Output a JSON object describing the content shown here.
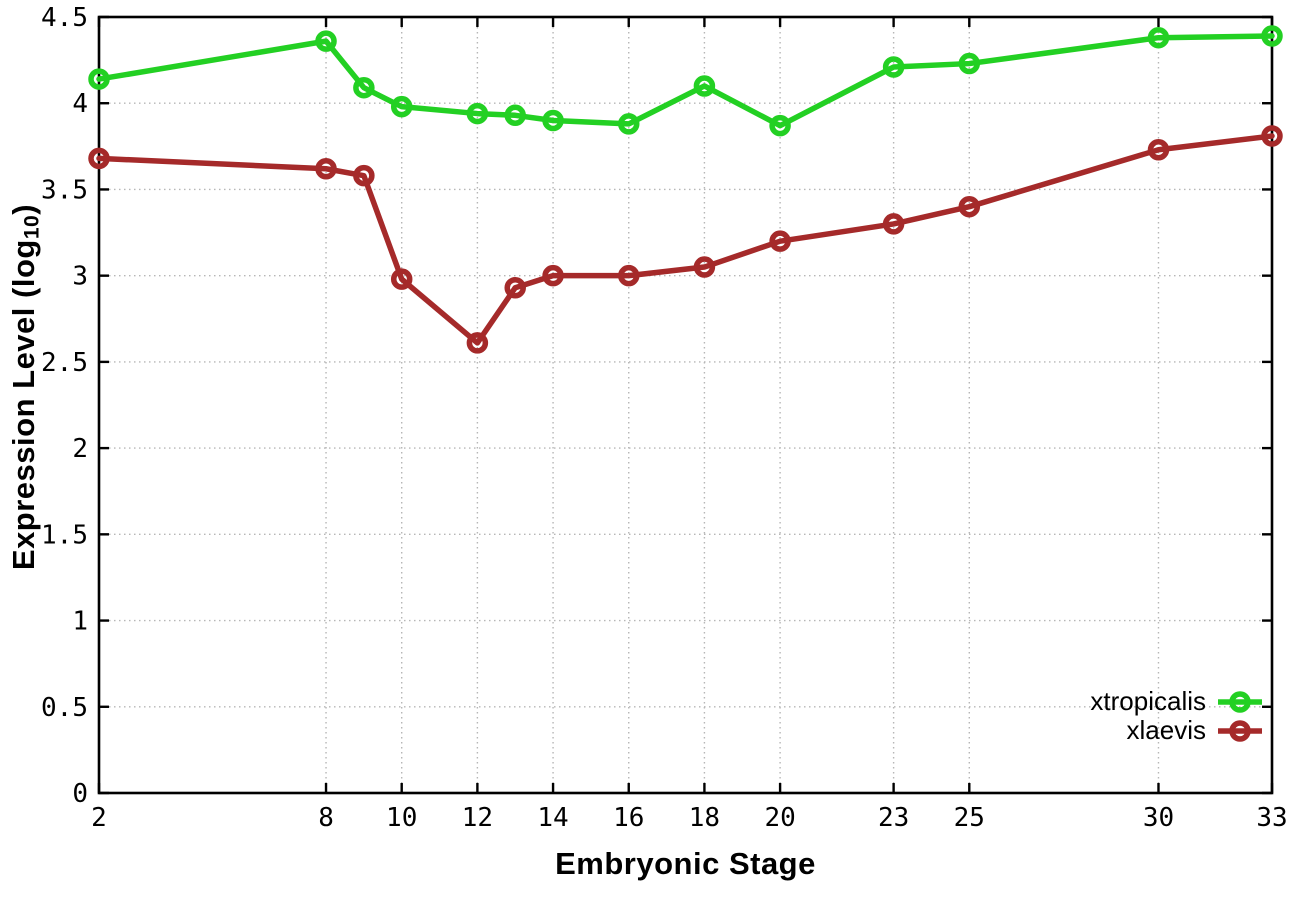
{
  "chart_data": {
    "type": "line",
    "title": "",
    "xlabel": "Embryonic Stage",
    "ylabel": {
      "text": "Expression Level (log",
      "subscript": "10",
      "suffix": ")"
    },
    "x": [
      2,
      8,
      9,
      10,
      12,
      13,
      14,
      16,
      18,
      20,
      23,
      25,
      30,
      33
    ],
    "series": [
      {
        "name": "xtropicalis",
        "color": "#23d023",
        "values": [
          4.14,
          4.36,
          4.09,
          3.98,
          3.94,
          3.93,
          3.9,
          3.88,
          4.1,
          3.87,
          4.21,
          4.23,
          4.38,
          4.39
        ]
      },
      {
        "name": "xlaevis",
        "color": "#a52a2a",
        "values": [
          3.68,
          3.62,
          3.58,
          2.98,
          2.61,
          2.93,
          3.0,
          3.0,
          3.05,
          3.2,
          3.3,
          3.4,
          3.73,
          3.81
        ]
      }
    ],
    "xlim": [
      2,
      33
    ],
    "ylim": [
      0,
      4.5
    ],
    "xticks": [
      2,
      8,
      10,
      12,
      14,
      16,
      18,
      20,
      23,
      25,
      30,
      33
    ],
    "ytick_labels": [
      "0",
      "0.5",
      "1",
      "1.5",
      "2",
      "2.5",
      "3",
      "3.5",
      "4",
      "4.5"
    ],
    "grid": true,
    "marker": "open-circle",
    "legend_position": "inside-bottom-right"
  },
  "style": {
    "background": "#ffffff",
    "frame_color": "#000000",
    "grid_color": "#b6b6b6",
    "text_color": "#000000"
  }
}
